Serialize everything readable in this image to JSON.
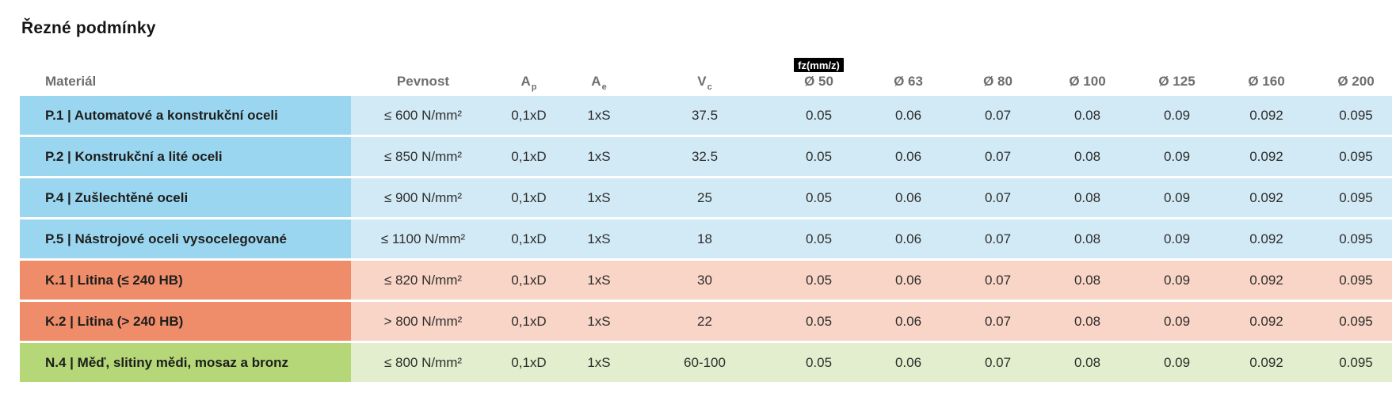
{
  "page": {
    "title": "Řezné podmínky"
  },
  "table": {
    "headers": {
      "material": "Materiál",
      "pevnost": "Pevnost",
      "ap_base": "A",
      "ap_sub": "p",
      "ae_base": "A",
      "ae_sub": "e",
      "vc_base": "V",
      "vc_sub": "c",
      "fz_badge": "fz(mm/z)",
      "diameters": [
        "Ø 50",
        "Ø 63",
        "Ø 80",
        "Ø 100",
        "Ø 125",
        "Ø 160",
        "Ø 200"
      ]
    },
    "colors": {
      "steel_dark": "#9bd6f0",
      "steel_light": "#d2eaf6",
      "cast_iron_dark": "#ef8d6b",
      "cast_iron_light": "#f9d5c7",
      "non_ferrous_dark": "#b5d778",
      "non_ferrous_light": "#e2eecd",
      "badge_bg": "#000000",
      "badge_text": "#ffffff"
    },
    "rows": [
      {
        "material": "P.1 | Automatové a konstrukční oceli",
        "pevnost": "≤ 600 N/mm²",
        "ap": "0,1xD",
        "ae": "1xS",
        "vc": "37.5",
        "fz": [
          "0.05",
          "0.06",
          "0.07",
          "0.08",
          "0.09",
          "0.092",
          "0.095"
        ]
      },
      {
        "material": "P.2 | Konstrukční a lité oceli",
        "pevnost": "≤ 850 N/mm²",
        "ap": "0,1xD",
        "ae": "1xS",
        "vc": "32.5",
        "fz": [
          "0.05",
          "0.06",
          "0.07",
          "0.08",
          "0.09",
          "0.092",
          "0.095"
        ]
      },
      {
        "material": "P.4 | Zušlechtěné oceli",
        "pevnost": "≤ 900 N/mm²",
        "ap": "0,1xD",
        "ae": "1xS",
        "vc": "25",
        "fz": [
          "0.05",
          "0.06",
          "0.07",
          "0.08",
          "0.09",
          "0.092",
          "0.095"
        ]
      },
      {
        "material": "P.5 | Nástrojové oceli vysocelegované",
        "pevnost": "≤ 1100 N/mm²",
        "ap": "0,1xD",
        "ae": "1xS",
        "vc": "18",
        "fz": [
          "0.05",
          "0.06",
          "0.07",
          "0.08",
          "0.09",
          "0.092",
          "0.095"
        ]
      },
      {
        "material": "K.1 | Litina (≤ 240 HB)",
        "pevnost": "≤ 820 N/mm²",
        "ap": "0,1xD",
        "ae": "1xS",
        "vc": "30",
        "fz": [
          "0.05",
          "0.06",
          "0.07",
          "0.08",
          "0.09",
          "0.092",
          "0.095"
        ]
      },
      {
        "material": "K.2 | Litina (> 240 HB)",
        "pevnost": "> 800 N/mm²",
        "ap": "0,1xD",
        "ae": "1xS",
        "vc": "22",
        "fz": [
          "0.05",
          "0.06",
          "0.07",
          "0.08",
          "0.09",
          "0.092",
          "0.095"
        ]
      },
      {
        "material": "N.4 | Měď, slitiny mědi, mosaz a bronz",
        "pevnost": "≤ 800 N/mm²",
        "ap": "0,1xD",
        "ae": "1xS",
        "vc": "60-100",
        "fz": [
          "0.05",
          "0.06",
          "0.07",
          "0.08",
          "0.09",
          "0.092",
          "0.095"
        ]
      }
    ]
  }
}
